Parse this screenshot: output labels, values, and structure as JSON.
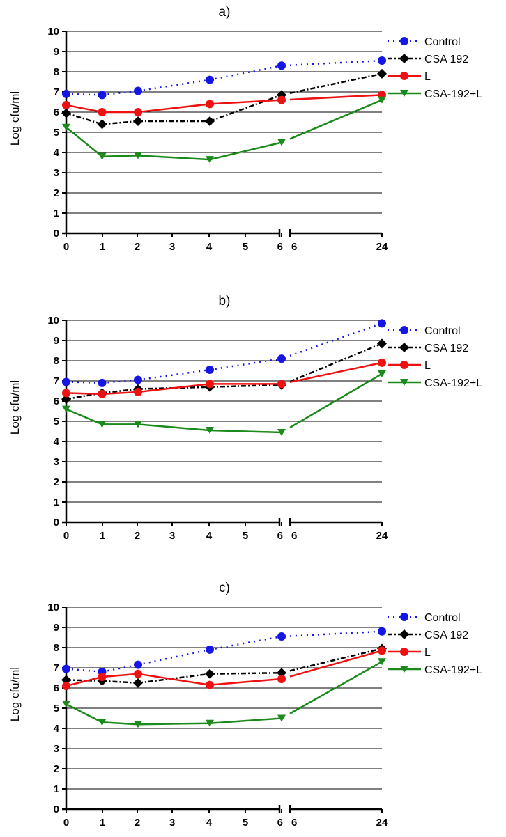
{
  "chart_data": [
    {
      "type": "line",
      "title": "a)",
      "xlabel": "",
      "ylabel": "Log cfu/ml",
      "ylim": [
        0,
        10
      ],
      "y_ticks": [
        "0",
        "1",
        "2",
        "3",
        "4",
        "5",
        "6",
        "7",
        "8",
        "9",
        "10"
      ],
      "x_ticks": [
        "0",
        "1",
        "2",
        "3",
        "4",
        "5",
        "6",
        "6",
        "24"
      ],
      "x_axis_break": "between 6 and 6",
      "grid": "horizontal",
      "legend_position": "top-right",
      "series": [
        {
          "name": "Control",
          "color": "#1515e6",
          "style": "dotted",
          "marker": "circle",
          "x": [
            0,
            1,
            2,
            4,
            6,
            24
          ],
          "values": [
            6.9,
            6.85,
            7.05,
            7.6,
            8.3,
            8.55
          ]
        },
        {
          "name": "CSA 192",
          "color": "#000000",
          "style": "dash-dot",
          "marker": "diamond",
          "x": [
            0,
            1,
            2,
            4,
            6,
            24
          ],
          "values": [
            5.95,
            5.4,
            5.55,
            5.55,
            6.85,
            7.9
          ]
        },
        {
          "name": "L",
          "color": "#ee1111",
          "style": "solid",
          "marker": "circle",
          "x": [
            0,
            1,
            2,
            4,
            6,
            24
          ],
          "values": [
            6.35,
            6.0,
            6.0,
            6.4,
            6.6,
            6.85
          ]
        },
        {
          "name": "CSA-192+L",
          "color": "#1a8a1a",
          "style": "solid",
          "marker": "triangle-down",
          "x": [
            0,
            1,
            2,
            4,
            6,
            24
          ],
          "values": [
            5.25,
            3.8,
            3.85,
            3.65,
            4.5,
            6.6
          ]
        }
      ]
    },
    {
      "type": "line",
      "title": "b)",
      "xlabel": "",
      "ylabel": "Log cfu/ml",
      "ylim": [
        0,
        10
      ],
      "y_ticks": [
        "0",
        "1",
        "2",
        "3",
        "4",
        "5",
        "6",
        "7",
        "8",
        "9",
        "10"
      ],
      "x_ticks": [
        "0",
        "1",
        "2",
        "3",
        "4",
        "5",
        "6",
        "6",
        "24"
      ],
      "x_axis_break": "between 6 and 6",
      "grid": "horizontal",
      "legend_position": "top-right",
      "series": [
        {
          "name": "Control",
          "color": "#1515e6",
          "style": "dotted",
          "marker": "circle",
          "x": [
            0,
            1,
            2,
            4,
            6,
            24
          ],
          "values": [
            6.95,
            6.9,
            7.05,
            7.55,
            8.1,
            9.85
          ]
        },
        {
          "name": "CSA 192",
          "color": "#000000",
          "style": "dash-dot",
          "marker": "diamond",
          "x": [
            0,
            1,
            2,
            4,
            6,
            24
          ],
          "values": [
            6.1,
            6.4,
            6.6,
            6.7,
            6.8,
            8.85
          ]
        },
        {
          "name": "L",
          "color": "#ee1111",
          "style": "solid",
          "marker": "circle",
          "x": [
            0,
            1,
            2,
            4,
            6,
            24
          ],
          "values": [
            6.4,
            6.35,
            6.45,
            6.85,
            6.85,
            7.9
          ]
        },
        {
          "name": "CSA-192+L",
          "color": "#1a8a1a",
          "style": "solid",
          "marker": "triangle-down",
          "x": [
            0,
            1,
            2,
            4,
            6,
            24
          ],
          "values": [
            5.6,
            4.85,
            4.85,
            4.55,
            4.45,
            7.35
          ]
        }
      ]
    },
    {
      "type": "line",
      "title": "c)",
      "xlabel": "",
      "ylabel": "Log cfu/ml",
      "ylim": [
        0,
        10
      ],
      "y_ticks": [
        "0",
        "1",
        "2",
        "3",
        "4",
        "5",
        "6",
        "7",
        "8",
        "9",
        "10"
      ],
      "x_ticks": [
        "0",
        "1",
        "2",
        "3",
        "4",
        "5",
        "6",
        "6",
        "24"
      ],
      "x_axis_break": "between 6 and 6",
      "grid": "horizontal",
      "legend_position": "top-right",
      "series": [
        {
          "name": "Control",
          "color": "#1515e6",
          "style": "dotted",
          "marker": "circle",
          "x": [
            0,
            1,
            2,
            4,
            6,
            24
          ],
          "values": [
            6.95,
            6.8,
            7.15,
            7.9,
            8.55,
            8.8
          ]
        },
        {
          "name": "CSA 192",
          "color": "#000000",
          "style": "dash-dot",
          "marker": "diamond",
          "x": [
            0,
            1,
            2,
            4,
            6,
            24
          ],
          "values": [
            6.4,
            6.35,
            6.25,
            6.7,
            6.75,
            7.95
          ]
        },
        {
          "name": "L",
          "color": "#ee1111",
          "style": "solid",
          "marker": "circle",
          "x": [
            0,
            1,
            2,
            4,
            6,
            24
          ],
          "values": [
            6.1,
            6.55,
            6.7,
            6.15,
            6.45,
            7.85
          ]
        },
        {
          "name": "CSA-192+L",
          "color": "#1a8a1a",
          "style": "solid",
          "marker": "triangle-down",
          "x": [
            0,
            1,
            2,
            4,
            6,
            24
          ],
          "values": [
            5.2,
            4.3,
            4.2,
            4.25,
            4.5,
            7.3
          ]
        }
      ]
    }
  ]
}
